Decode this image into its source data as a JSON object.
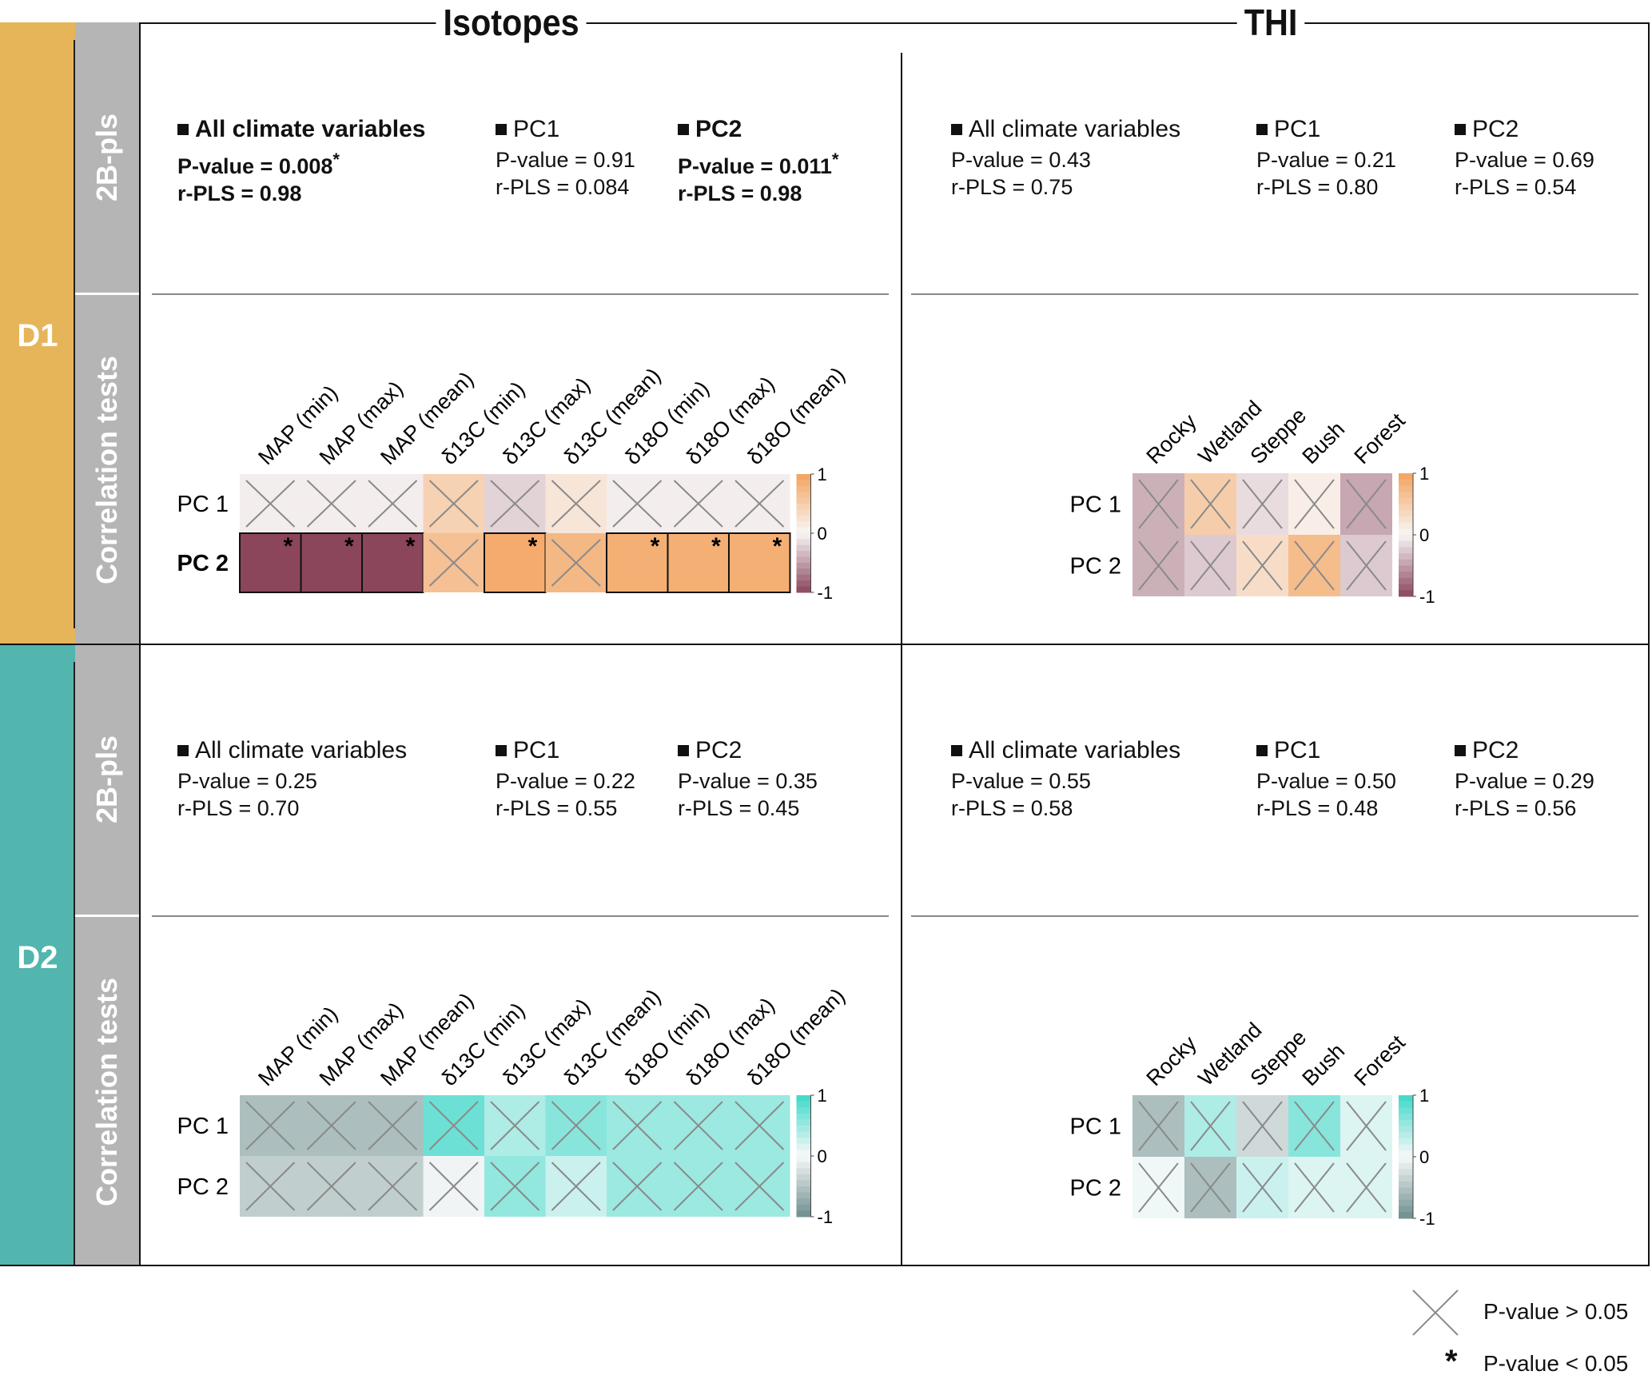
{
  "columns": {
    "isotopes": "Isotopes",
    "thi": "THI"
  },
  "bands": [
    {
      "id": "D1",
      "label": "D1",
      "color": "#e6b55a",
      "palette": "orange-purple"
    },
    {
      "id": "D2",
      "label": "D2",
      "color": "#52b5ae",
      "palette": "teal-grey"
    }
  ],
  "sub_labels": {
    "pls": "2B-pls",
    "corr": "Correlation tests"
  },
  "pls": {
    "D1": {
      "isotopes": [
        {
          "head": "All climate variables",
          "p": "P-value = 0.008",
          "r": "r-PLS = 0.98",
          "significant": true
        },
        {
          "head": "PC1",
          "p": "P-value = 0.91",
          "r": "r-PLS = 0.084",
          "significant": false
        },
        {
          "head": "PC2",
          "p": "P-value = 0.011",
          "r": "r-PLS = 0.98",
          "significant": true
        }
      ],
      "thi": [
        {
          "head": "All climate variables",
          "p": "P-value = 0.43",
          "r": "r-PLS = 0.75",
          "significant": false
        },
        {
          "head": "PC1",
          "p": "P-value = 0.21",
          "r": "r-PLS = 0.80",
          "significant": false
        },
        {
          "head": "PC2",
          "p": "P-value = 0.69",
          "r": "r-PLS = 0.54",
          "significant": false
        }
      ]
    },
    "D2": {
      "isotopes": [
        {
          "head": "All climate variables",
          "p": "P-value = 0.25",
          "r": "r-PLS = 0.70",
          "significant": false
        },
        {
          "head": "PC1",
          "p": "P-value = 0.22",
          "r": "r-PLS = 0.55",
          "significant": false
        },
        {
          "head": "PC2",
          "p": "P-value = 0.35",
          "r": "r-PLS = 0.45",
          "significant": false
        }
      ],
      "thi": [
        {
          "head": "All climate variables",
          "p": "P-value = 0.55",
          "r": "r-PLS = 0.58",
          "significant": false
        },
        {
          "head": "PC1",
          "p": "P-value = 0.50",
          "r": "r-PLS = 0.48",
          "significant": false
        },
        {
          "head": "PC2",
          "p": "P-value = 0.29",
          "r": "r-PLS = 0.56",
          "significant": false
        }
      ]
    }
  },
  "sig_marker": "*",
  "legend": {
    "cross": "P-value > 0.05",
    "star": "P-value < 0.05",
    "star_symbol": "*"
  },
  "chart_data": [
    {
      "type": "heatmap",
      "title": "D1 Isotopes correlation tests",
      "palette": "orange-purple",
      "x": [
        "MAP (min)",
        "MAP (max)",
        "MAP (mean)",
        "δ13C (min)",
        "δ13C (max)",
        "δ13C (mean)",
        "δ18O (min)",
        "δ18O (max)",
        "δ18O (mean)"
      ],
      "y": [
        "PC 1",
        "PC 2"
      ],
      "values": [
        [
          -0.05,
          -0.05,
          -0.05,
          0.45,
          -0.2,
          0.2,
          -0.05,
          -0.05,
          -0.05
        ],
        [
          -1.0,
          -1.0,
          -1.0,
          0.65,
          0.9,
          0.75,
          0.85,
          0.85,
          0.85
        ]
      ],
      "significant": [
        [
          false,
          false,
          false,
          false,
          false,
          false,
          false,
          false,
          false
        ],
        [
          true,
          true,
          true,
          false,
          true,
          false,
          true,
          true,
          true
        ]
      ],
      "bold_rows": [
        "PC 2"
      ],
      "colorbar": {
        "min": -1,
        "max": 1,
        "ticks": [
          "1",
          "0",
          "-1"
        ]
      }
    },
    {
      "type": "heatmap",
      "title": "D1 THI correlation tests",
      "palette": "orange-purple",
      "x": [
        "Rocky",
        "Wetland",
        "Steppe",
        "Bush",
        "Forest"
      ],
      "y": [
        "PC 1",
        "PC 2"
      ],
      "values": [
        [
          -0.4,
          0.5,
          -0.15,
          0.1,
          -0.45
        ],
        [
          -0.4,
          -0.25,
          0.3,
          0.7,
          -0.25
        ]
      ],
      "significant": [
        [
          false,
          false,
          false,
          false,
          false
        ],
        [
          false,
          false,
          false,
          false,
          false
        ]
      ],
      "bold_rows": [],
      "colorbar": {
        "min": -1,
        "max": 1,
        "ticks": [
          "1",
          "0",
          "-1"
        ]
      }
    },
    {
      "type": "heatmap",
      "title": "D2 Isotopes correlation tests",
      "palette": "teal-grey",
      "x": [
        "MAP (min)",
        "MAP (max)",
        "MAP (mean)",
        "δ13C (min)",
        "δ13C (max)",
        "δ13C (mean)",
        "δ18O (min)",
        "δ18O (max)",
        "δ18O (mean)"
      ],
      "y": [
        "PC 1",
        "PC 2"
      ],
      "values": [
        [
          -0.55,
          -0.55,
          -0.55,
          0.75,
          0.4,
          0.6,
          0.5,
          0.5,
          0.5
        ],
        [
          -0.4,
          -0.4,
          -0.4,
          -0.05,
          0.55,
          0.25,
          0.5,
          0.5,
          0.5
        ]
      ],
      "significant": [
        [
          false,
          false,
          false,
          false,
          false,
          false,
          false,
          false,
          false
        ],
        [
          false,
          false,
          false,
          false,
          false,
          false,
          false,
          false,
          false
        ]
      ],
      "bold_rows": [],
      "colorbar": {
        "min": -1,
        "max": 1,
        "ticks": [
          "1",
          "0",
          "-1"
        ]
      }
    },
    {
      "type": "heatmap",
      "title": "D2 THI correlation tests",
      "palette": "teal-grey",
      "x": [
        "Rocky",
        "Wetland",
        "Steppe",
        "Bush",
        "Forest"
      ],
      "y": [
        "PC 1",
        "PC 2"
      ],
      "values": [
        [
          -0.55,
          0.4,
          -0.3,
          0.6,
          0.15
        ],
        [
          0.05,
          -0.55,
          0.25,
          0.15,
          0.15
        ]
      ],
      "significant": [
        [
          false,
          false,
          false,
          false,
          false
        ],
        [
          false,
          false,
          false,
          false,
          false
        ]
      ],
      "bold_rows": [],
      "colorbar": {
        "min": -1,
        "max": 1,
        "ticks": [
          "1",
          "0",
          "-1"
        ]
      }
    }
  ]
}
